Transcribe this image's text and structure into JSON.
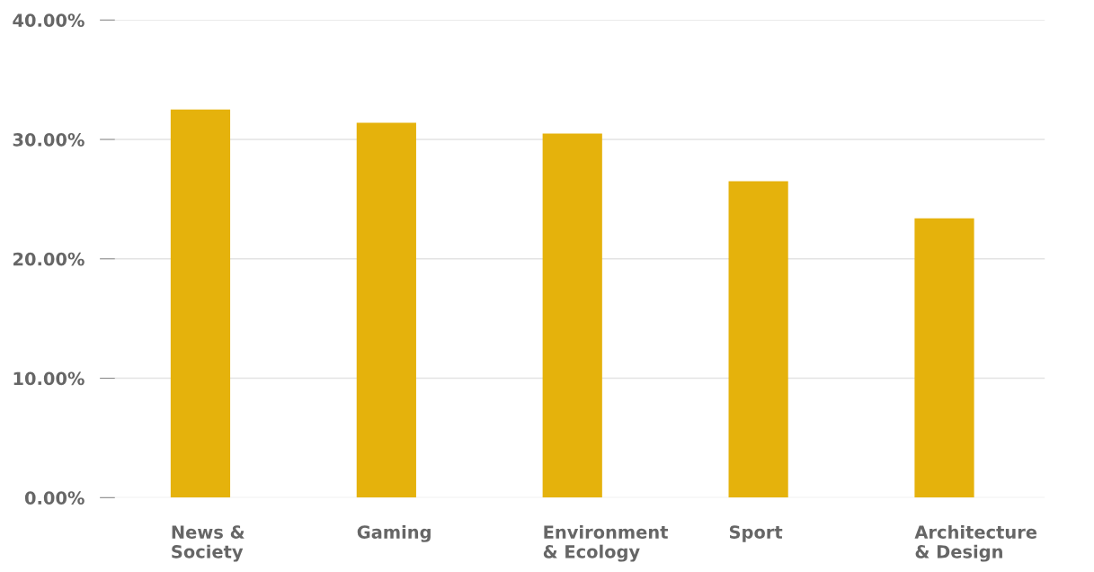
{
  "chart_data": {
    "type": "bar",
    "categories": [
      "News &\nSociety",
      "Gaming",
      "Environment\n& Ecology",
      "Sport",
      "Architecture\n& Design"
    ],
    "values": [
      32.5,
      31.4,
      30.5,
      26.5,
      23.4
    ],
    "color": "#e5b20c",
    "ylim": [
      0,
      40
    ],
    "yticks": [
      {
        "value": 0,
        "label": "0.00%"
      },
      {
        "value": 10,
        "label": "10.00%"
      },
      {
        "value": 20,
        "label": "20.00%"
      },
      {
        "value": 30,
        "label": "30.00%"
      },
      {
        "value": 40,
        "label": "40.00%"
      }
    ],
    "grid": "y"
  }
}
